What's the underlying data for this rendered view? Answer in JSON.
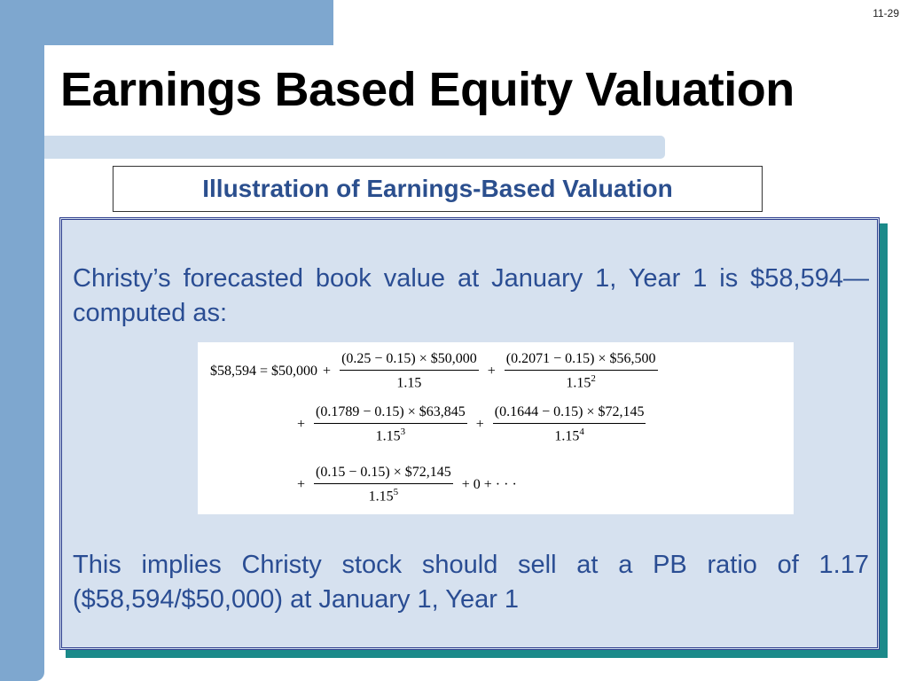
{
  "slide_number": "11-29",
  "title": "Earnings Based Equity Valuation",
  "subtitle": "Illustration of Earnings-Based Valuation",
  "paragraph1": "Christy’s forecasted book value at January 1, Year 1 is $58,594—computed as:",
  "paragraph2": "This implies Christy stock should sell at a PB ratio of 1.17 ($58,594/$50,000) at January 1, Year 1",
  "formula": {
    "lhs": "$58,594 = $50,000",
    "plus": "+",
    "equals_tail": "+ 0 + · · ·",
    "terms": [
      {
        "numerator": "(0.25 − 0.15) × $50,000",
        "den_base": "1.15",
        "den_exp": ""
      },
      {
        "numerator": "(0.2071 − 0.15) × $56,500",
        "den_base": "1.15",
        "den_exp": "2"
      },
      {
        "numerator": "(0.1789 − 0.15) × $63,845",
        "den_base": "1.15",
        "den_exp": "3"
      },
      {
        "numerator": "(0.1644 − 0.15) × $72,145",
        "den_base": "1.15",
        "den_exp": "4"
      },
      {
        "numerator": "(0.15 − 0.15) × $72,145",
        "den_base": "1.15",
        "den_exp": "5"
      }
    ]
  }
}
